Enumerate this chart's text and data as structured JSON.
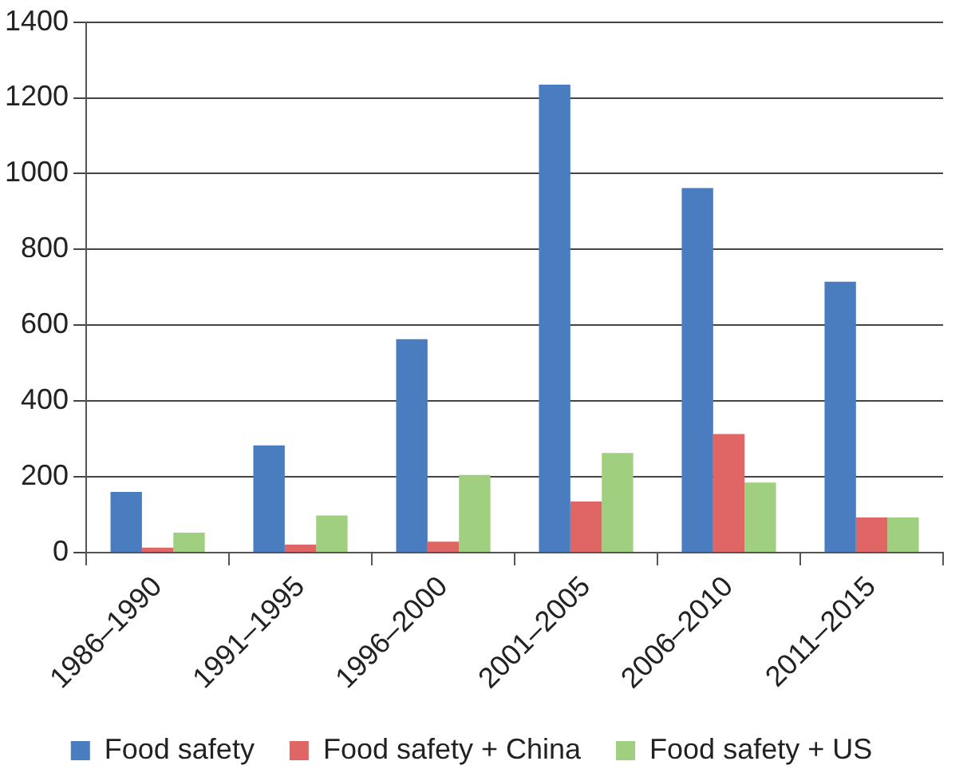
{
  "chart_data": {
    "type": "bar",
    "categories": [
      "1986–1990",
      "1991–1995",
      "1996–2000",
      "2001–2005",
      "2006–2010",
      "2011–2015"
    ],
    "series": [
      {
        "name": "Food safety",
        "color": "#4a7cc0",
        "values": [
          160,
          283,
          563,
          1235,
          962,
          715
        ]
      },
      {
        "name": "Food safety + China",
        "color": "#e06666",
        "values": [
          13,
          21,
          29,
          135,
          313,
          93
        ]
      },
      {
        "name": "Food safety + US",
        "color": "#9fcf7f",
        "values": [
          53,
          98,
          205,
          263,
          185,
          93
        ]
      }
    ],
    "ylim": [
      0,
      1400
    ],
    "yticks": [
      0,
      200,
      400,
      600,
      800,
      1000,
      1200,
      1400
    ],
    "grid": "y",
    "legend": "bottom"
  }
}
